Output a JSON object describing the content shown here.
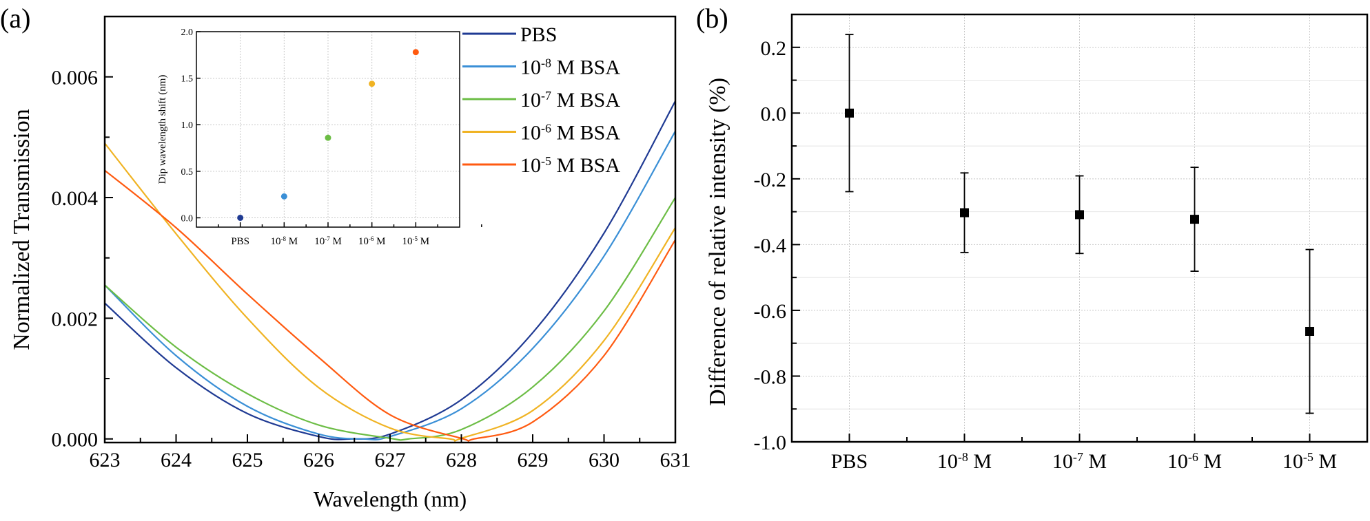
{
  "chart_data": [
    {
      "type": "line",
      "panel_label": "(a)",
      "xlabel": "Wavelength (nm)",
      "ylabel": "Normalized Transmission",
      "xlim": [
        623,
        631
      ],
      "ylim": [
        -6e-05,
        0.007
      ],
      "xticks": [
        "623",
        "624",
        "625",
        "626",
        "627",
        "628",
        "629",
        "630",
        "631"
      ],
      "yticks": [
        "0.000",
        "0.002",
        "0.004",
        "0.006"
      ],
      "ytick_values": [
        0,
        0.002,
        0.004,
        0.006
      ],
      "grid": false,
      "legend_placement": "top-right",
      "x": [
        623,
        624,
        625,
        626,
        627,
        628,
        629,
        630,
        631
      ],
      "series": [
        {
          "name": "PBS",
          "color": "#1f3a93",
          "minimum": [
            626.45,
            0
          ],
          "values": [
            0.00225,
            0.00118,
            0.00042,
            4e-05,
            8e-05,
            0.00065,
            0.00176,
            0.00341,
            0.0056
          ]
        },
        {
          "name": "10^-8 M BSA",
          "label_base": "10",
          "label_exp": "-8",
          "label_rest": " M BSA",
          "color": "#3a8fd6",
          "minimum": [
            626.63,
            0
          ],
          "values": [
            0.00255,
            0.00138,
            0.00054,
            8e-05,
            4e-05,
            0.0005,
            0.0015,
            0.00303,
            0.0051
          ]
        },
        {
          "name": "10^-7 M BSA",
          "label_base": "10",
          "label_exp": "-7",
          "label_rest": " M BSA",
          "color": "#6cbd45",
          "minimum": [
            627.26,
            0
          ],
          "values": [
            0.00255,
            0.00152,
            0.00075,
            0.00023,
            1e-05,
            0.000155,
            0.00086,
            0.00212,
            0.004
          ]
        },
        {
          "name": "10^-6 M BSA",
          "label_base": "10",
          "label_exp": "-6",
          "label_rest": " M BSA",
          "color": "#f0b323",
          "minimum": [
            627.84,
            0
          ],
          "values": [
            0.0049,
            0.0034,
            0.002,
            0.00085,
            0.00018,
            1e-05,
            0.00047,
            0.00163,
            0.0035
          ]
        },
        {
          "name": "10^-5 M BSA",
          "label_base": "10",
          "label_exp": "-5",
          "label_rest": " M BSA",
          "color": "#ff5a10",
          "minimum": [
            628.18,
            0
          ],
          "values": [
            0.00445,
            0.0035,
            0.0024,
            0.00135,
            0.0004,
            1e-05,
            0.00028,
            0.00138,
            0.0033
          ]
        }
      ],
      "inset": {
        "type": "scatter",
        "ylabel": "Dip wavelength shift (nm)",
        "ylim": [
          -0.1,
          2.0
        ],
        "yticks": [
          "0.0",
          "0.5",
          "1.0",
          "1.5",
          "2.0"
        ],
        "ytick_values": [
          0,
          0.5,
          1.0,
          1.5,
          2.0
        ],
        "grid": true,
        "categories": [
          {
            "base": "PBS",
            "exp": "",
            "rest": ""
          },
          {
            "base": "10",
            "exp": "-8",
            "rest": " M"
          },
          {
            "base": "10",
            "exp": "-7",
            "rest": " M"
          },
          {
            "base": "10",
            "exp": "-6",
            "rest": " M"
          },
          {
            "base": "10",
            "exp": "-5",
            "rest": " M"
          }
        ],
        "values": [
          0.0,
          0.23,
          0.86,
          1.44,
          1.78
        ],
        "colors": [
          "#1f3a93",
          "#3a8fd6",
          "#6cbd45",
          "#f0b323",
          "#ff5a10"
        ]
      }
    },
    {
      "type": "scatter",
      "panel_label": "(b)",
      "xlabel": "",
      "ylabel": "Difference of relative intensity (%)",
      "ylim": [
        -1.0,
        0.3
      ],
      "yticks": [
        "0.2",
        "0.0",
        "-0.2",
        "-0.4",
        "-0.6",
        "-0.8",
        "-1.0"
      ],
      "ytick_values": [
        0.2,
        0.0,
        -0.2,
        -0.4,
        -0.6,
        -0.8,
        -1.0
      ],
      "grid": true,
      "categories": [
        {
          "base": "PBS",
          "exp": "",
          "rest": ""
        },
        {
          "base": "10",
          "exp": "-8",
          "rest": " M"
        },
        {
          "base": "10",
          "exp": "-7",
          "rest": " M"
        },
        {
          "base": "10",
          "exp": "-6",
          "rest": " M"
        },
        {
          "base": "10",
          "exp": "-5",
          "rest": " M"
        }
      ],
      "values": [
        0.0,
        -0.303,
        -0.309,
        -0.323,
        -0.664
      ],
      "errors": [
        0.239,
        0.121,
        0.118,
        0.158,
        0.249
      ],
      "marker": "square",
      "color": "#000000"
    }
  ]
}
